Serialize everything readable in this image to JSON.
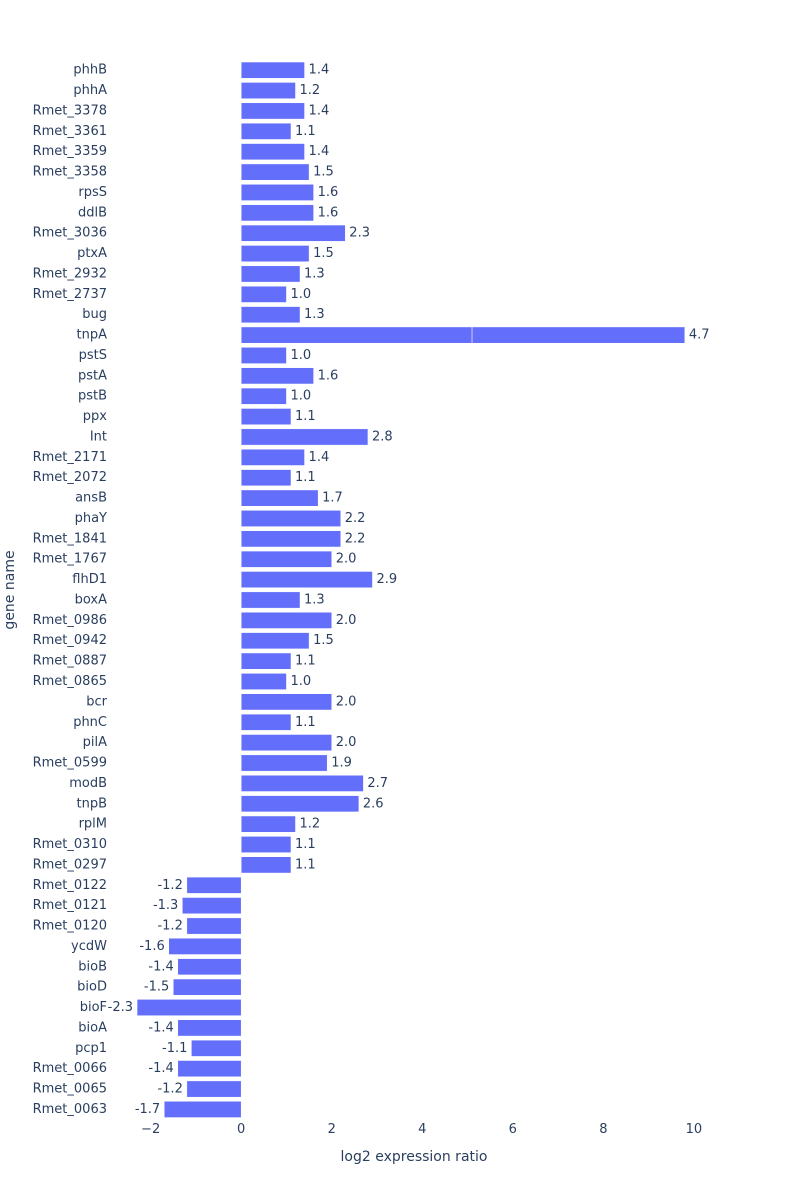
{
  "chart_data": {
    "type": "bar",
    "orientation": "horizontal",
    "stacked": true,
    "x_label": "log2 expression ratio",
    "y_label": "gene name",
    "categories": [
      "phhB",
      "phhA",
      "Rmet_3378",
      "Rmet_3361",
      "Rmet_3359",
      "Rmet_3358",
      "rpsS",
      "ddlB",
      "Rmet_3036",
      "ptxA",
      "Rmet_2932",
      "Rmet_2737",
      "bug",
      "tnpA",
      "pstS",
      "pstA",
      "pstB",
      "ppx",
      "Int",
      "Rmet_2171",
      "Rmet_2072",
      "ansB",
      "phaY",
      "Rmet_1841",
      "Rmet_1767",
      "flhD1",
      "boxA",
      "Rmet_0986",
      "Rmet_0942",
      "Rmet_0887",
      "Rmet_0865",
      "bcr",
      "phnC",
      "pilA",
      "Rmet_0599",
      "modB",
      "tnpB",
      "rplM",
      "Rmet_0310",
      "Rmet_0297",
      "Rmet_0122",
      "Rmet_0121",
      "Rmet_0120",
      "ycdW",
      "bioB",
      "bioD",
      "bioF",
      "bioA",
      "pcp1",
      "Rmet_0066",
      "Rmet_0065",
      "Rmet_0063"
    ],
    "series": [
      {
        "color": "#636efa",
        "values": [
          1.4,
          1.2,
          1.4,
          1.1,
          1.4,
          1.5,
          1.6,
          1.6,
          2.3,
          1.5,
          1.3,
          1.0,
          1.3,
          5.1,
          1.0,
          1.6,
          1.0,
          1.1,
          2.8,
          1.4,
          1.1,
          1.7,
          2.2,
          2.2,
          2.0,
          2.9,
          1.3,
          2.0,
          1.5,
          1.1,
          1.0,
          2.0,
          1.1,
          2.0,
          1.9,
          2.7,
          2.6,
          1.2,
          1.1,
          1.1,
          -1.2,
          -1.3,
          -1.2,
          -1.6,
          -1.4,
          -1.5,
          -2.3,
          -1.4,
          -1.1,
          -1.4,
          -1.2,
          -1.7
        ],
        "value_labels": [
          "1.4",
          "1.2",
          "1.4",
          "1.1",
          "1.4",
          "1.5",
          "1.6",
          "1.6",
          "2.3",
          "1.5",
          "1.3",
          "1.0",
          "1.3",
          null,
          "1.0",
          "1.6",
          "1.0",
          "1.1",
          "2.8",
          "1.4",
          "1.1",
          "1.7",
          "2.2",
          "2.2",
          "2.0",
          "2.9",
          "1.3",
          "2.0",
          "1.5",
          "1.1",
          "1.0",
          "2.0",
          "1.1",
          "2.0",
          "1.9",
          "2.7",
          "2.6",
          "1.2",
          "1.1",
          "1.1",
          "-1.2",
          "-1.3",
          "-1.2",
          "-1.6",
          "-1.4",
          "-1.5",
          "-2.3",
          "-1.4",
          "-1.1",
          "-1.4",
          "-1.2",
          "-1.7"
        ]
      },
      {
        "color": "#636efa",
        "values": [
          null,
          null,
          null,
          null,
          null,
          null,
          null,
          null,
          null,
          null,
          null,
          null,
          null,
          4.7,
          null,
          null,
          null,
          null,
          null,
          null,
          null,
          null,
          null,
          null,
          null,
          null,
          null,
          null,
          null,
          null,
          null,
          null,
          null,
          null,
          null,
          null,
          null,
          null,
          null,
          null,
          null,
          null,
          null,
          null,
          null,
          null,
          null,
          null,
          null,
          null,
          null,
          null
        ],
        "value_labels": [
          null,
          null,
          null,
          null,
          null,
          null,
          null,
          null,
          null,
          null,
          null,
          null,
          null,
          "4.7",
          null,
          null,
          null,
          null,
          null,
          null,
          null,
          null,
          null,
          null,
          null,
          null,
          null,
          null,
          null,
          null,
          null,
          null,
          null,
          null,
          null,
          null,
          null,
          null,
          null,
          null,
          null,
          null,
          null,
          null,
          null,
          null,
          null,
          null,
          null,
          null,
          null,
          null
        ]
      }
    ],
    "xlim": [
      -2.5,
      10.4
    ],
    "xticks": [
      {
        "value": -2,
        "label": "−2"
      },
      0,
      2,
      4,
      6,
      8,
      10
    ],
    "grid": false
  }
}
